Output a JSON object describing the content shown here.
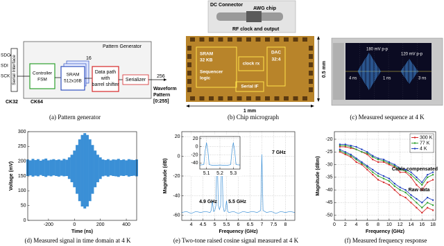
{
  "figure": {
    "captions": [
      "(a) Pattern generator",
      "(b) Chip micrograph",
      "(c) Measured sequence at 4 K",
      "(d) Measured signal in time domain at 4 K",
      "(e) Two-tone raised cosine signal measured at 4 K",
      "(f) Measured frequency response"
    ]
  },
  "diagram": {
    "title": "Pattern Generator",
    "pins": [
      "SDO",
      "SDI",
      "SCK"
    ],
    "serial_interface": "Serial Interface",
    "controller": [
      "Controller",
      "FSM"
    ],
    "sram": [
      "SRAM",
      "512x16B"
    ],
    "datapath": [
      "Data path",
      "with",
      "barrel shifter"
    ],
    "serializer": "Serializer",
    "output": [
      "Waveform",
      "Pattern",
      "[0:255]"
    ],
    "clocks": [
      "CK32",
      "CK64"
    ],
    "bus_widths": [
      "16",
      "256"
    ]
  },
  "micrograph": {
    "connector": "DC Connector",
    "chip": "AWG chip",
    "rf": "RF clock and output",
    "blocks": [
      "SRAM",
      "32 KB",
      "Sequencer",
      "logic",
      "clock rx",
      "DAC",
      "32:4",
      "Serial IF"
    ],
    "width": "1 mm",
    "height": "0.5 mm"
  },
  "scope": {
    "labels": [
      "180 mV p-p",
      "120 mV p-p",
      "4 ns",
      "1 ns",
      "3 ns"
    ]
  },
  "chart_data": [
    {
      "type": "area",
      "xlabel": "Time (ns)",
      "ylabel": "Voltage (mV)",
      "x": [
        -360,
        -340,
        -320,
        -300,
        -280,
        -260,
        -240,
        -220,
        -200,
        -180,
        -160,
        -140,
        -120,
        -100,
        -80,
        -60,
        -40,
        -20,
        0,
        20,
        40,
        60,
        80,
        100,
        120,
        140,
        160,
        180,
        200,
        220,
        240,
        260,
        280,
        300,
        320,
        340,
        360,
        380,
        400,
        420,
        440,
        460,
        480
      ],
      "series": [
        {
          "color": "#3a8fd6",
          "values": [
            206,
            203,
            208,
            204,
            207,
            202,
            206,
            209,
            203,
            205,
            207,
            204,
            206,
            203,
            208,
            205,
            213,
            222,
            236,
            255,
            274,
            289,
            295,
            289,
            274,
            255,
            236,
            222,
            213,
            206,
            204,
            207,
            203,
            206,
            205,
            208,
            204,
            206,
            203,
            207,
            205,
            204,
            206
          ]
        },
        {
          "color": "#3a8fd6",
          "values": [
            150,
            152,
            148,
            151,
            149,
            153,
            150,
            147,
            151,
            149,
            152,
            150,
            148,
            151,
            149,
            150,
            140,
            129,
            112,
            90,
            65,
            47,
            40,
            47,
            65,
            90,
            112,
            129,
            140,
            149,
            151,
            148,
            152,
            150,
            149,
            147,
            151,
            150,
            152,
            148,
            150,
            151,
            149
          ]
        }
      ],
      "xlim": [
        -360,
        480
      ],
      "xticks": [
        -200,
        0,
        200,
        400
      ],
      "ylim": [
        0,
        300
      ],
      "yticks": [
        0,
        50,
        100,
        150,
        200,
        250,
        300
      ],
      "grid": false
    },
    {
      "type": "line",
      "xlabel": "Frequency (GHz)",
      "ylabel": "Magnitude (dB)",
      "x": [
        3.6,
        3.8,
        4.0,
        4.2,
        4.4,
        4.6,
        4.8,
        4.85,
        4.9,
        4.95,
        5.0,
        5.05,
        5.1,
        5.15,
        5.2,
        5.25,
        5.3,
        5.35,
        5.4,
        5.45,
        5.5,
        5.55,
        5.6,
        5.8,
        6.0,
        6.2,
        6.4,
        6.6,
        6.8,
        6.95,
        7.0,
        7.05,
        7.2,
        7.4,
        7.6,
        7.8,
        8.0,
        8.2,
        8.4
      ],
      "series": [
        {
          "color": "#3a8fd6",
          "values": [
            -57,
            -56,
            -58,
            -56,
            -57,
            -56,
            -57,
            -55,
            -45,
            -56,
            -55,
            -50,
            10,
            -50,
            -54,
            -50,
            10,
            -50,
            -56,
            -55,
            -45,
            -56,
            -57,
            -56,
            -58,
            -56,
            -57,
            -56,
            -57,
            -55,
            2,
            -55,
            -57,
            -56,
            -58,
            -56,
            -57,
            -56,
            -57
          ]
        }
      ],
      "xlim": [
        3.6,
        8.4
      ],
      "xticks": [
        4,
        4.5,
        5,
        5.5,
        6,
        6.5,
        7,
        7.5,
        8
      ],
      "ylim": [
        -65,
        25
      ],
      "yticks": [
        -60,
        -40,
        -20,
        0,
        20
      ],
      "grid": true,
      "annotations": [
        "4.9 GHz",
        "5.5 GHz",
        "7 GHz"
      ]
    },
    {
      "type": "line",
      "x": [
        5.05,
        5.08,
        5.09,
        5.1,
        5.11,
        5.12,
        5.15,
        5.2,
        5.25,
        5.28,
        5.29,
        5.3,
        5.31,
        5.32,
        5.35
      ],
      "series": [
        {
          "color": "#3a8fd6",
          "values": [
            -45,
            -44,
            -10,
            10,
            -10,
            -44,
            -46,
            -45,
            -46,
            -44,
            -10,
            10,
            -10,
            -44,
            -45
          ]
        }
      ],
      "xlim": [
        5.05,
        5.35
      ],
      "xticks": [
        5.1,
        5.2,
        5.3
      ],
      "ylim": [
        -55,
        25
      ],
      "yticks": [
        -40,
        -20,
        0,
        20
      ],
      "grid": true
    },
    {
      "type": "line",
      "xlabel": "Frequency (GHz)",
      "ylabel": "Magnitude (dBm)",
      "markers": true,
      "legend": "upper right",
      "x": [
        1,
        2,
        3,
        4,
        5,
        6,
        7,
        8,
        9,
        10,
        11,
        12,
        13,
        14,
        15,
        16,
        17,
        18
      ],
      "series": [
        {
          "name": "300 K",
          "color": "#d62728",
          "values": [
            -23,
            -23,
            -23.5,
            -24,
            -25,
            -26,
            -28,
            -29,
            -29,
            -30,
            -31,
            -33,
            -33,
            -35,
            -38,
            -40,
            -37,
            -36
          ]
        },
        {
          "name": "77 K",
          "color": "#2ca02c",
          "values": [
            -22.5,
            -22.5,
            -23,
            -24,
            -25,
            -25.5,
            -27,
            -28,
            -28.5,
            -29.5,
            -30.5,
            -32,
            -32.5,
            -34,
            -36,
            -38,
            -35,
            -34
          ]
        },
        {
          "name": "4 K",
          "color": "#1f3fbf",
          "values": [
            -22,
            -22,
            -22.5,
            -23,
            -24,
            -25,
            -26.5,
            -27.5,
            -28,
            -29,
            -30,
            -31.5,
            -32,
            -33,
            -35,
            -37,
            -34,
            -33
          ]
        },
        {
          "color": "#d62728",
          "values": [
            -25,
            -26,
            -27,
            -29,
            -30,
            -32,
            -34,
            -36,
            -37,
            -38,
            -40,
            -42,
            -43,
            -45,
            -47,
            -49,
            -47,
            -48
          ]
        },
        {
          "color": "#2ca02c",
          "values": [
            -24.5,
            -25.5,
            -26.5,
            -28,
            -29.5,
            -31,
            -33,
            -34.5,
            -35.5,
            -36.5,
            -38.5,
            -40,
            -41,
            -43,
            -45,
            -47,
            -45,
            -46
          ]
        },
        {
          "color": "#1f3fbf",
          "values": [
            -24,
            -25,
            -26,
            -27.5,
            -29,
            -30.5,
            -32,
            -33.5,
            -34.5,
            -35.5,
            -37.5,
            -39,
            -40,
            -42,
            -43.5,
            -45,
            -43,
            -44
          ]
        }
      ],
      "xlim": [
        0,
        18.5
      ],
      "xticks": [
        0,
        2,
        4,
        6,
        8,
        10,
        12,
        14,
        16,
        18
      ],
      "ylim": [
        -52,
        -17
      ],
      "yticks": [
        -50,
        -45,
        -40,
        -35,
        -30,
        -25,
        -20
      ],
      "grid": true,
      "annotations": [
        "Cable compensated",
        "Raw data"
      ]
    }
  ]
}
